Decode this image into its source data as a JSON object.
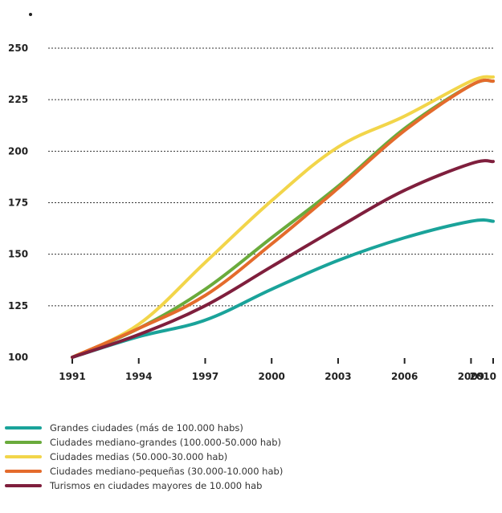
{
  "chart_data": {
    "type": "line",
    "x": [
      1991,
      1994,
      1997,
      2000,
      2003,
      2006,
      2009,
      2010
    ],
    "xticks": [
      "1991",
      "1994",
      "1997",
      "2000",
      "2003",
      "2006",
      "2009",
      "2010"
    ],
    "ylim": [
      100,
      250
    ],
    "yticks": [
      "100",
      "125",
      "150",
      "175",
      "200",
      "225",
      "250"
    ],
    "grid": true,
    "legend_position": "bottom",
    "series": [
      {
        "name": "Grandes ciudades (más de 100.000 habs)",
        "color": "#1aa39a",
        "values": [
          100,
          110,
          118,
          133,
          147,
          158,
          166,
          166
        ]
      },
      {
        "name": "Ciudades mediano-grandes (100.000-50.000 hab)",
        "color": "#6aab3c",
        "values": [
          100,
          114,
          133,
          158,
          183,
          211,
          232,
          234
        ]
      },
      {
        "name": "Ciudades medias (50.000-30.000 hab)",
        "color": "#f2d54a",
        "values": [
          100,
          116,
          146,
          176,
          202,
          217,
          234,
          236
        ]
      },
      {
        "name": "Ciudades mediano-pequeñas (30.000-10.000 hab)",
        "color": "#e46b2c",
        "values": [
          100,
          114,
          130,
          155,
          182,
          210,
          232,
          234
        ]
      },
      {
        "name": "Turismos en ciudades mayores de 10.000 hab",
        "color": "#7f1f3d",
        "values": [
          100,
          111,
          125,
          144,
          163,
          181,
          194,
          195
        ]
      }
    ]
  }
}
